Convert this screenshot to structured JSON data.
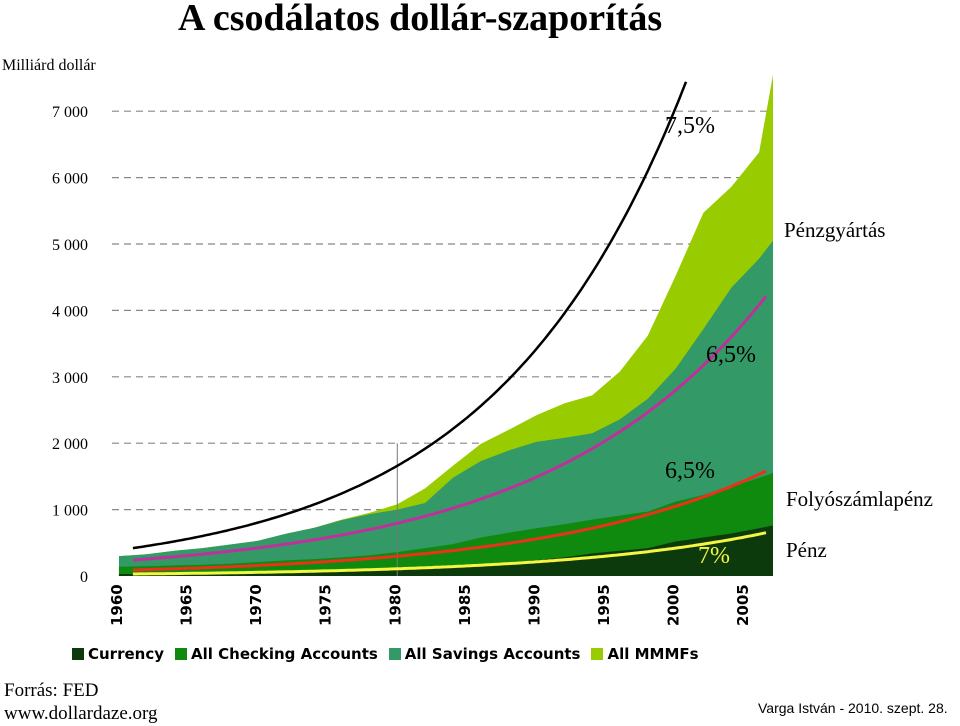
{
  "header": {
    "title": "A csodálatos dollár-szaporítás",
    "unit_label": "Milliárd dollár"
  },
  "footer": {
    "source_line1": "Forrás: FED",
    "source_line2": "www.dollardaze.org",
    "credit": "Varga István - 2010. szept. 28."
  },
  "colors": {
    "currency": "#0d3a0d",
    "checking": "#0f8a0f",
    "savings": "#339966",
    "mmmf": "#99cc00",
    "trend_curve": "#000000",
    "trend_magenta": "#c0309c",
    "trend_red": "#e8321a",
    "trend_yellow": "#f5f542",
    "grid": "#888888"
  },
  "chart_data": {
    "type": "area",
    "stacked": true,
    "ylim": [
      0,
      7500
    ],
    "xlim": [
      1959.5,
      2007
    ],
    "y_ticks": [
      "0",
      "1 000",
      "2 000",
      "3 000",
      "4 000",
      "5 000",
      "6 000",
      "7 000"
    ],
    "y_tick_values": [
      0,
      1000,
      2000,
      3000,
      4000,
      5000,
      6000,
      7000
    ],
    "x_ticks": [
      "1960",
      "1965",
      "1970",
      "1975",
      "1980",
      "1985",
      "1990",
      "1995",
      "2000",
      "2005"
    ],
    "x_tick_values": [
      1960,
      1965,
      1970,
      1975,
      1980,
      1985,
      1990,
      1995,
      2000,
      2005
    ],
    "grid": "horizontal dashed",
    "years": [
      1960,
      1962,
      1964,
      1966,
      1968,
      1970,
      1972,
      1974,
      1976,
      1978,
      1980,
      1982,
      1984,
      1986,
      1988,
      1990,
      1992,
      1994,
      1996,
      1998,
      2000,
      2002,
      2004,
      2006,
      2007
    ],
    "series": [
      {
        "name": "Currency",
        "values": [
          30,
          32,
          35,
          40,
          45,
          50,
          55,
          65,
          80,
          90,
          110,
          130,
          160,
          180,
          210,
          240,
          280,
          340,
          380,
          420,
          520,
          580,
          640,
          720,
          760
        ]
      },
      {
        "name": "All Checking Accounts",
        "values": [
          110,
          115,
          125,
          130,
          140,
          160,
          180,
          190,
          200,
          220,
          250,
          290,
          320,
          400,
          440,
          480,
          500,
          510,
          530,
          550,
          600,
          640,
          700,
          760,
          790
        ]
      },
      {
        "name": "All Savings Accounts",
        "values": [
          160,
          180,
          220,
          250,
          290,
          320,
          400,
          470,
          560,
          620,
          640,
          680,
          1000,
          1150,
          1240,
          1300,
          1300,
          1300,
          1450,
          1700,
          2000,
          2500,
          3000,
          3300,
          3500
        ]
      },
      {
        "name": "All MMMFs",
        "values": [
          0,
          0,
          0,
          0,
          0,
          0,
          0,
          0,
          10,
          20,
          80,
          220,
          180,
          260,
          310,
          400,
          520,
          570,
          720,
          950,
          1400,
          1750,
          1520,
          1600,
          2500
        ]
      }
    ],
    "trend_lines": [
      {
        "name": "Pénzgyártás",
        "label": "7,5%",
        "rate": 0.075,
        "start_year": 1961,
        "start_value": 420,
        "color": "#000000"
      },
      {
        "name": "Folyószámlapénz",
        "label": "6,5%",
        "rate": 0.065,
        "start_year": 1961,
        "start_value": 240,
        "color": "#c0309c"
      },
      {
        "name": "Pénz",
        "label": "6,5%",
        "rate": 0.065,
        "start_year": 1961,
        "start_value": 90,
        "color": "#e8321a"
      },
      {
        "name": "Currency trend",
        "label": "7%",
        "rate": 0.07,
        "start_year": 1961,
        "start_value": 30,
        "color": "#f5f542"
      }
    ],
    "series_labels": [
      "Pénzgyártás",
      "Folyószámlapénz",
      "Pénz"
    ],
    "marker_year": 1980
  }
}
